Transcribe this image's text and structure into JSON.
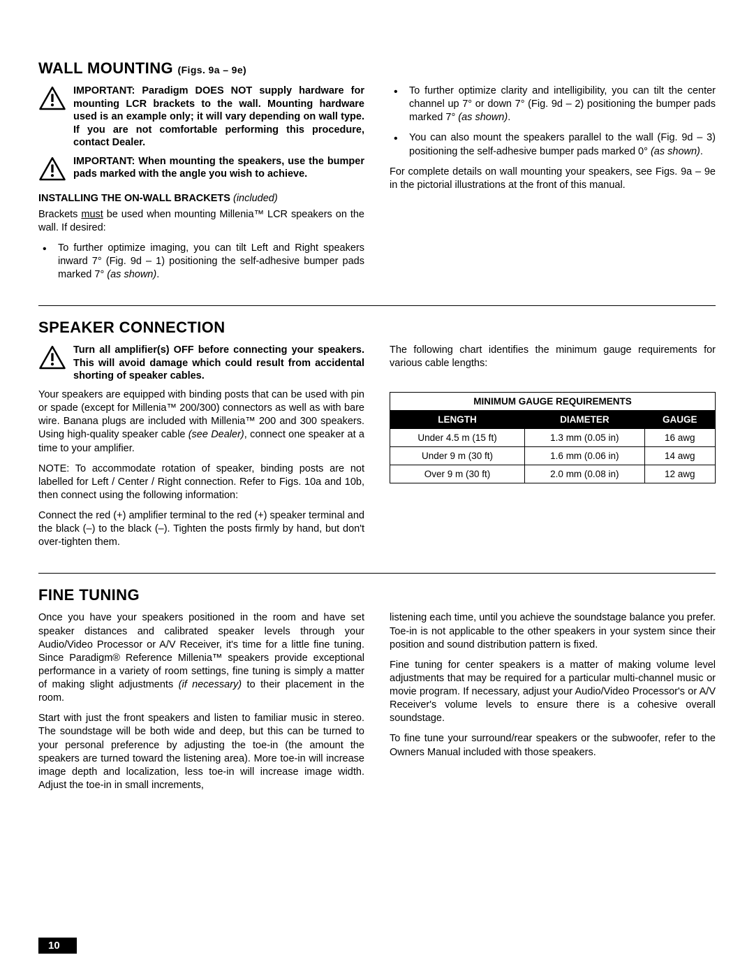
{
  "wall_mounting": {
    "title": "WALL MOUNTING",
    "subtitle": "(Figs. 9a – 9e)",
    "warn1_html": "IMPORTANT: Paradigm DOES NOT supply hardware for mounting LCR brackets to the wall. Mounting hardware used is an example only; it will vary depending on wall type. If you are not comfortable performing this procedure, contact Dealer.",
    "warn2_html": "IMPORTANT: When mounting the speakers, use the bumper pads marked with the angle you wish to achieve.",
    "sub_heading_html": "INSTALLING THE ON-WALL BRACKETS <em>(included)</em>",
    "brackets_intro_html": "Brackets <span class=\"u\">must</span> be used when mounting Millenia™ LCR speakers on the wall. If desired:",
    "left_bullets_html": [
      "To further optimize imaging, you can tilt Left and Right speakers inward 7° (Fig. 9d – 1) positioning the self-adhesive bumper pads marked 7° <em>(as shown)</em>."
    ],
    "right_bullets_html": [
      "To further optimize clarity and intelligibility, you can tilt the center channel up 7° or down 7° (Fig. 9d – 2) positioning the bumper pads marked 7° <em>(as shown)</em>.",
      "You can also mount the speakers parallel to the wall (Fig. 9d – 3) positioning the self-adhesive bumper pads marked 0° <em>(as shown)</em>."
    ],
    "right_after_html": "For complete details on wall mounting your speakers, see Figs. 9a – 9e in the pictorial illustrations at the front of this manual."
  },
  "speaker_connection": {
    "title": "SPEAKER CONNECTION",
    "warn_html": "Turn all amplifier(s) OFF before connecting your speakers. This will avoid damage which could result from accidental shorting of speaker cables.",
    "left_paras_html": [
      "Your speakers are equipped with binding posts that can be used with pin or spade (except for Millenia™ 200/300) connectors as well as with bare wire. Banana plugs are included with Millenia™ 200 and 300 speakers. Using high-quality speaker cable <em>(see Dealer)</em>, connect one speaker at a time to your amplifier.",
      "NOTE: To accommodate rotation of speaker, binding posts are not labelled for Left / Center / Right connection. Refer to Figs. 10a and 10b, then connect using the following information:",
      "Connect the red (+) amplifier terminal to the red (+) speaker terminal and the black (–) to the black (–). Tighten the posts firmly by hand, but don't over-tighten them."
    ],
    "right_intro_html": "The following chart identifies the minimum gauge requirements for various cable lengths:",
    "table": {
      "title": "MINIMUM GAUGE REQUIREMENTS",
      "columns": [
        "LENGTH",
        "DIAMETER",
        "GAUGE"
      ],
      "rows": [
        [
          "Under 4.5 m (15 ft)",
          "1.3 mm (0.05 in)",
          "16 awg"
        ],
        [
          "Under 9 m (30 ft)",
          "1.6 mm (0.06 in)",
          "14 awg"
        ],
        [
          "Over 9 m (30 ft)",
          "2.0 mm (0.08 in)",
          "12 awg"
        ]
      ]
    }
  },
  "fine_tuning": {
    "title": "FINE TUNING",
    "left_paras_html": [
      "Once you have your speakers positioned in the room and have set speaker distances and calibrated speaker levels through your Audio/Video Processor or A/V Receiver, it's time for a little fine tuning. Since Paradigm® Reference Millenia™ speakers provide exceptional performance in a variety of room settings, fine tuning is simply a matter of making slight adjustments <em>(if necessary)</em> to their placement in the room.",
      "Start with just the front speakers and listen to familiar music in stereo. The soundstage will be both wide and deep, but this can be turned to your personal preference by adjusting the toe-in (the amount the speakers are turned toward the listening area). More toe-in will increase image depth and localization, less toe-in will increase image width. Adjust the toe-in in small increments,"
    ],
    "right_paras_html": [
      "listening each time, until you achieve the soundstage balance you prefer. Toe-in is not applicable to the other speakers in your system since their position and sound distribution pattern is fixed.",
      "Fine tuning for center speakers is a matter of making volume level adjustments that may be required for a particular multi-channel music or movie program. If necessary, adjust your Audio/Video Processor's or A/V Receiver's volume levels to ensure there is a cohesive overall soundstage.",
      "To fine tune your surround/rear speakers or the subwoofer, refer to the Owners Manual included with those speakers."
    ]
  },
  "page_number": "10",
  "colors": {
    "text": "#000000",
    "background": "#ffffff",
    "table_header_bg": "#000000",
    "table_header_fg": "#ffffff"
  }
}
